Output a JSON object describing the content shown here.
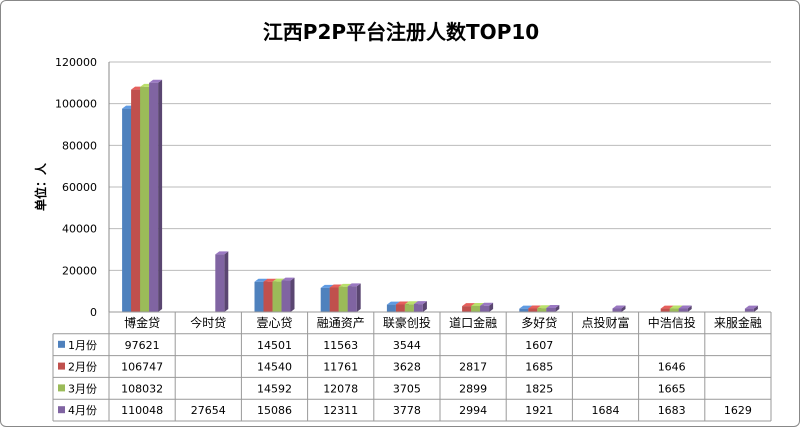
{
  "chart_data": {
    "type": "bar",
    "title": "江西P2P平台注册人数TOP10",
    "ylabel": "单位：人",
    "xlabel": "",
    "ylim": [
      0,
      120000
    ],
    "yticks": [
      0,
      20000,
      40000,
      60000,
      80000,
      100000,
      120000
    ],
    "grid": true,
    "legend_placement": "data-table-left",
    "categories": [
      "博金贷",
      "今时贷",
      "壹心贷",
      "融通资产",
      "联豪创投",
      "道口金融",
      "多好贷",
      "点投财富",
      "中浩信投",
      "来服金融"
    ],
    "series": [
      {
        "name": "1月份",
        "color": "#4F81BD",
        "values": [
          97621,
          null,
          14501,
          11563,
          3544,
          null,
          1607,
          null,
          null,
          null
        ]
      },
      {
        "name": "2月份",
        "color": "#C0504D",
        "values": [
          106747,
          null,
          14540,
          11761,
          3628,
          2817,
          1685,
          null,
          1646,
          null
        ]
      },
      {
        "name": "3月份",
        "color": "#9BBB59",
        "values": [
          108032,
          null,
          14592,
          12078,
          3705,
          2899,
          1825,
          null,
          1665,
          null
        ]
      },
      {
        "name": "4月份",
        "color": "#8064A2",
        "values": [
          110048,
          27654,
          15086,
          12311,
          3778,
          2994,
          1921,
          1684,
          1683,
          1629
        ]
      }
    ]
  }
}
